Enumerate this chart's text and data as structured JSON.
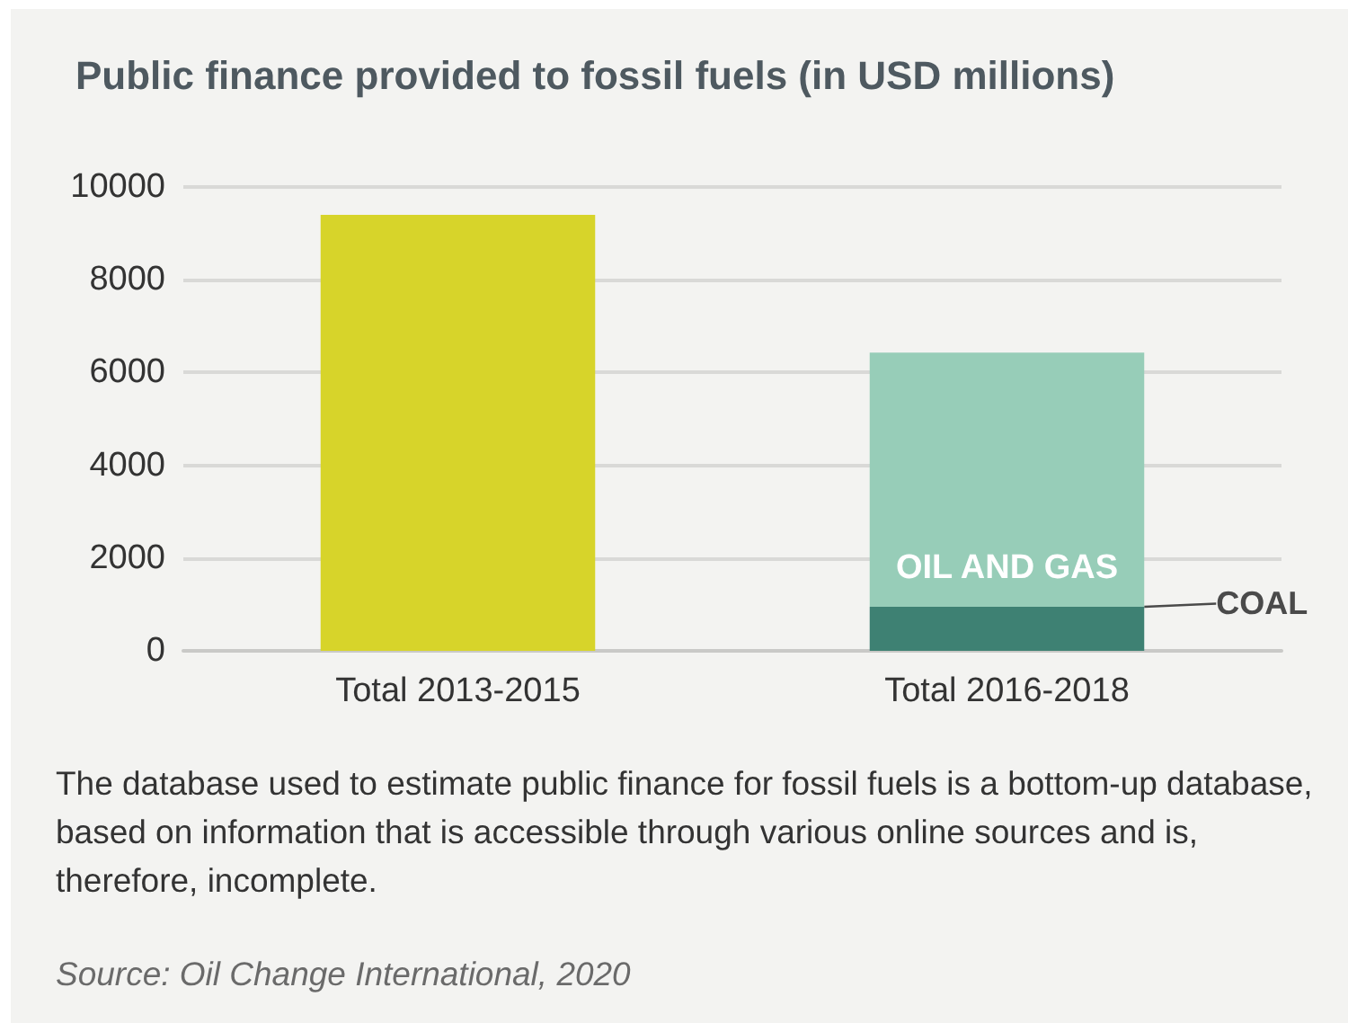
{
  "chart_data": {
    "type": "bar",
    "title": "Public finance provided to fossil fuels (in USD millions)",
    "categories": [
      "Total 2013-2015",
      "Total 2016-2018"
    ],
    "series": [
      {
        "color": "#d7d42a",
        "values": [
          9400,
          null
        ]
      },
      {
        "name": "COAL",
        "color": "#3e8173",
        "values": [
          null,
          950
        ]
      },
      {
        "name": "OIL AND GAS",
        "color": "#97cdb8",
        "values": [
          null,
          5480
        ]
      }
    ],
    "stacked": true,
    "ylim": [
      0,
      10000
    ],
    "yticks": [
      0,
      2000,
      4000,
      6000,
      8000,
      10000
    ],
    "grid": "y",
    "annotations": [
      "The database used to estimate public finance for fossil fuels is a bottom-up database, based on information that is accessible through various online sources and is, therefore, incomplete.",
      "Source: Oil Change International, 2020"
    ]
  }
}
